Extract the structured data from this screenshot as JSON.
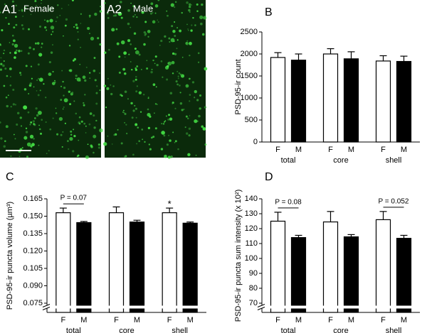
{
  "images": [
    {
      "label": "A1",
      "title": "Female"
    },
    {
      "label": "A2",
      "title": "Male"
    }
  ],
  "chart_data": [
    {
      "type": "bar",
      "panel": "B",
      "ylabel": "PSD-95-ir count",
      "categories": [
        "total",
        "core",
        "shell"
      ],
      "series": [
        {
          "name": "F",
          "color": "#ffffff",
          "values": [
            1920,
            2000,
            1840
          ],
          "errors": [
            110,
            120,
            120
          ]
        },
        {
          "name": "M",
          "color": "#000000",
          "values": [
            1860,
            1890,
            1830
          ],
          "errors": [
            140,
            160,
            120
          ]
        }
      ],
      "ylim": [
        0,
        2500
      ],
      "yticks": [
        0,
        500,
        1000,
        1500,
        2000,
        2500
      ],
      "axis_break": false,
      "annotations": []
    },
    {
      "type": "bar",
      "panel": "C",
      "ylabel": "PSD-95-ir puncta volume (µm³)",
      "categories": [
        "total",
        "core",
        "shell"
      ],
      "series": [
        {
          "name": "F",
          "color": "#ffffff",
          "values": [
            0.153,
            0.153,
            0.153
          ],
          "errors": [
            0.004,
            0.005,
            0.004
          ]
        },
        {
          "name": "M",
          "color": "#000000",
          "values": [
            0.1445,
            0.145,
            0.144
          ],
          "errors": [
            0.001,
            0.0015,
            0.001
          ]
        }
      ],
      "ylim": [
        0.075,
        0.165
      ],
      "yticks": [
        0.075,
        {
          "value": 0.09,
          "label": "0.090"
        },
        0.105,
        {
          "value": 0.12,
          "label": "0.120"
        },
        0.135,
        {
          "value": 0.15,
          "label": "0.150"
        },
        0.165
      ],
      "axis_break": true,
      "annotations": [
        {
          "text": "P = 0.07",
          "category": "total"
        },
        {
          "text": "*",
          "category": "shell",
          "series": "F"
        }
      ]
    },
    {
      "type": "bar",
      "panel": "D",
      "ylabel": "PSD-95-ir puncta sum intensity (x 10²)",
      "categories": [
        "total",
        "core",
        "shell"
      ],
      "series": [
        {
          "name": "F",
          "color": "#ffffff",
          "values": [
            125,
            124.5,
            126
          ],
          "errors": [
            6,
            7,
            5.5
          ]
        },
        {
          "name": "M",
          "color": "#000000",
          "values": [
            114,
            114.5,
            113.5
          ],
          "errors": [
            1.5,
            1.5,
            2
          ]
        }
      ],
      "ylim": [
        70,
        140
      ],
      "yticks": [
        70,
        80,
        90,
        100,
        110,
        120,
        130,
        140
      ],
      "axis_break": true,
      "annotations": [
        {
          "text": "P = 0.08",
          "category": "total"
        },
        {
          "text": "P = 0.052",
          "category": "shell"
        }
      ]
    }
  ]
}
